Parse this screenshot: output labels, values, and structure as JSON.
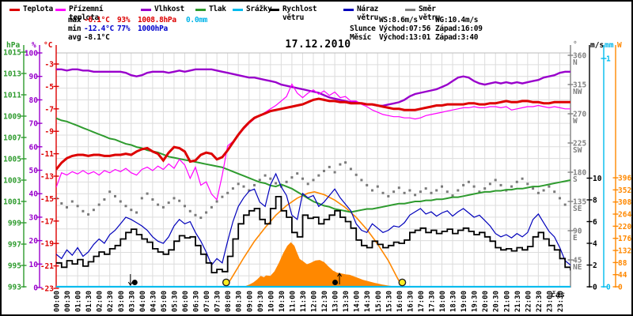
{
  "title": "17.12.2010",
  "xlabel": "čas",
  "legend": {
    "items": [
      {
        "label": "Teplota",
        "color": "#dd0000",
        "x": 10
      },
      {
        "label": "Přízemní teplota",
        "color": "#ff00ff",
        "x": 68
      },
      {
        "label": "Vlhkost",
        "color": "#9900cc",
        "x": 176
      },
      {
        "label": "Tlak",
        "color": "#2e9b2e",
        "x": 245
      },
      {
        "label": "Srážky",
        "color": "#00bbee",
        "x": 292
      },
      {
        "label": "Rychlost větru",
        "color": "#000000",
        "x": 338
      },
      {
        "label": "Náraz větru",
        "color": "#0000bb",
        "x": 432
      },
      {
        "label": "Směr větru",
        "color": "#808080",
        "x": 510
      }
    ]
  },
  "stats": {
    "max_label": "max",
    "max_temp": "-6.1°C",
    "max_hum": "93%",
    "max_pres": "1008.8hPa",
    "max_precip": "0.0mm",
    "min_label": "min",
    "min_temp": "-12.4°C",
    "min_hum": "77%",
    "min_pres": "1000hPa",
    "avg_label": "avg",
    "avg_temp": "-8.1°C",
    "ws": "WS:8.6m/s",
    "wg": "WG:10.4m/s",
    "sun_label": "Slunce",
    "sun_rise": "Východ:07:56",
    "sun_set": "Západ:16:09",
    "moon_label": "Měsíc",
    "moon_rise": "Východ:13:01",
    "moon_set": "Západ:3:40"
  },
  "axes": {
    "headers": {
      "hpa": "hPa",
      "pct": "%",
      "degc": "°C",
      "deg": "°",
      "ms": "m/s",
      "mm": "mm",
      "w": "W"
    },
    "pres_ticks": [
      1015,
      1013,
      1011,
      1009,
      1007,
      1005,
      1003,
      1001,
      999,
      997,
      995,
      993
    ],
    "hum_ticks": [
      100,
      90,
      80,
      70,
      60,
      50,
      40,
      30,
      20,
      10,
      0
    ],
    "temp_ticks": [
      -3,
      -5,
      -7,
      -9,
      -11,
      -13,
      -15,
      -17,
      -19,
      -21,
      -23
    ],
    "deg_ticks": [
      {
        "v": 360,
        "dir": "N"
      },
      {
        "v": 315,
        "dir": "NW"
      },
      {
        "v": 270,
        "dir": "W"
      },
      {
        "v": 225,
        "dir": "SW"
      },
      {
        "v": 180,
        "dir": "S"
      },
      {
        "v": 135,
        "dir": "SE"
      },
      {
        "v": 90,
        "dir": "E"
      },
      {
        "v": 45,
        "dir": "NE"
      }
    ],
    "ms_ticks": [
      10,
      8,
      6,
      4,
      2,
      0
    ],
    "mm_ticks": [
      1,
      0
    ],
    "w_ticks": [
      396,
      352,
      308,
      264,
      220,
      176,
      132,
      88,
      44,
      0
    ]
  },
  "time_labels": [
    "00:00",
    "00:30",
    "01:00",
    "01:30",
    "02:00",
    "02:30",
    "03:00",
    "03:30",
    "04:00",
    "04:30",
    "05:00",
    "05:30",
    "06:00",
    "06:30",
    "07:00",
    "07:30",
    "08:00",
    "08:30",
    "09:00",
    "09:30",
    "10:00",
    "10:30",
    "11:00",
    "11:30",
    "12:00",
    "12:30",
    "13:00",
    "13:30",
    "14:00",
    "14:30",
    "15:00",
    "15:30",
    "16:00",
    "16:30",
    "17:00",
    "17:30",
    "18:00",
    "18:30",
    "19:00",
    "19:30",
    "20:00",
    "20:30",
    "21:00",
    "21:30",
    "22:00",
    "22:30",
    "23:00",
    "23:30"
  ],
  "markers": {
    "sunrise_hour": 7.933,
    "sunset_hour": 16.15,
    "moonset_hour": 3.667,
    "moonrise_hour": 13.017,
    "sun_color": "#ffee22",
    "moon_color": "#000000"
  },
  "chart_data": {
    "type": "line",
    "title": "17.12.2010",
    "xlabel": "čas",
    "x_start_hour": 0,
    "x_step_hours": 0.25,
    "x_range_hours": [
      0,
      24
    ],
    "grid": true,
    "legend_position": "top",
    "series": [
      {
        "name": "Teplota",
        "unit": "°C",
        "color": "#dd0000",
        "axis": "temp",
        "ylim": [
          -23,
          -3
        ],
        "values": [
          -12.4,
          -11.8,
          -11.4,
          -11.2,
          -11.1,
          -11.1,
          -11.2,
          -11.1,
          -11.1,
          -11.2,
          -11.2,
          -11.1,
          -11.1,
          -11.0,
          -11.1,
          -10.8,
          -10.6,
          -10.5,
          -10.8,
          -11.0,
          -11.6,
          -10.9,
          -10.4,
          -10.5,
          -10.8,
          -11.7,
          -11.6,
          -11.1,
          -10.9,
          -11.0,
          -11.5,
          -11.3,
          -10.7,
          -10.0,
          -9.3,
          -8.7,
          -8.2,
          -7.8,
          -7.6,
          -7.4,
          -7.2,
          -7.1,
          -7.0,
          -6.9,
          -6.8,
          -6.7,
          -6.6,
          -6.4,
          -6.2,
          -6.1,
          -6.2,
          -6.3,
          -6.3,
          -6.4,
          -6.4,
          -6.5,
          -6.5,
          -6.5,
          -6.6,
          -6.6,
          -6.7,
          -6.8,
          -6.9,
          -7.0,
          -7.0,
          -7.1,
          -7.1,
          -7.1,
          -7.0,
          -6.9,
          -6.8,
          -6.7,
          -6.7,
          -6.6,
          -6.6,
          -6.6,
          -6.6,
          -6.5,
          -6.5,
          -6.6,
          -6.6,
          -6.5,
          -6.5,
          -6.4,
          -6.3,
          -6.4,
          -6.4,
          -6.3,
          -6.3,
          -6.4,
          -6.4,
          -6.5,
          -6.5,
          -6.4,
          -6.4,
          -6.4,
          -6.4
        ]
      },
      {
        "name": "Přízemní teplota",
        "unit": "°C",
        "color": "#ff00ff",
        "axis": "temp",
        "ylim": [
          -23,
          -3
        ],
        "values": [
          -14.0,
          -12.7,
          -12.9,
          -12.6,
          -12.8,
          -12.5,
          -12.8,
          -12.6,
          -12.9,
          -12.5,
          -12.7,
          -12.4,
          -12.6,
          -12.3,
          -12.7,
          -12.9,
          -12.4,
          -12.2,
          -12.5,
          -12.1,
          -12.4,
          -11.9,
          -12.3,
          -11.5,
          -12.0,
          -13.2,
          -12.2,
          -13.8,
          -13.5,
          -14.6,
          -15.1,
          -12.9,
          -10.3,
          -9.9,
          -9.4,
          -8.8,
          -8.3,
          -7.9,
          -7.6,
          -7.3,
          -7.0,
          -6.7,
          -6.3,
          -5.9,
          -4.8,
          -5.6,
          -6.0,
          -5.6,
          -5.3,
          -5.7,
          -5.4,
          -5.8,
          -5.5,
          -6.0,
          -5.9,
          -6.3,
          -6.3,
          -6.6,
          -6.8,
          -7.1,
          -7.3,
          -7.5,
          -7.6,
          -7.7,
          -7.7,
          -7.8,
          -7.8,
          -7.9,
          -7.8,
          -7.6,
          -7.5,
          -7.4,
          -7.3,
          -7.2,
          -7.1,
          -7.0,
          -6.9,
          -6.9,
          -6.8,
          -6.9,
          -6.9,
          -6.8,
          -6.8,
          -6.9,
          -6.8,
          -7.1,
          -7.0,
          -6.9,
          -6.8,
          -6.8,
          -6.7,
          -6.8,
          -6.9,
          -6.8,
          -6.9,
          -7.0,
          -7.0
        ]
      },
      {
        "name": "Vlhkost",
        "unit": "%",
        "color": "#9900cc",
        "axis": "hum",
        "ylim": [
          0,
          100
        ],
        "values": [
          93,
          93,
          92.5,
          93,
          93,
          92.5,
          92.5,
          92,
          92,
          92,
          92,
          92,
          92,
          91.5,
          90.5,
          90,
          90.5,
          91.5,
          92,
          92,
          92,
          91.5,
          92,
          92.5,
          92,
          92.5,
          93,
          93,
          93,
          93,
          92.5,
          92,
          91.5,
          91,
          90.5,
          90,
          89.5,
          89.5,
          89,
          88.5,
          88,
          87.5,
          86.5,
          86,
          85.5,
          85,
          84.5,
          84,
          83.5,
          83,
          82,
          81,
          80.5,
          80,
          79.5,
          79,
          79,
          78.5,
          78,
          78,
          77.5,
          77.5,
          78,
          78.5,
          79,
          80,
          81.5,
          82.5,
          83,
          83.5,
          84,
          84.5,
          85.5,
          86.5,
          88,
          89.5,
          90,
          89.5,
          88,
          87,
          86.5,
          87,
          87.5,
          87,
          87.5,
          87,
          87.5,
          87,
          87.5,
          88,
          88.5,
          89.5,
          90,
          90.5,
          91.5,
          92,
          92
        ]
      },
      {
        "name": "Tlak",
        "unit": "hPa",
        "color": "#2e9b2e",
        "axis": "pres",
        "ylim": [
          993,
          1015
        ],
        "values": [
          1008.8,
          1008.6,
          1008.5,
          1008.3,
          1008.1,
          1007.9,
          1007.7,
          1007.5,
          1007.3,
          1007.1,
          1006.9,
          1006.8,
          1006.6,
          1006.4,
          1006.3,
          1006.1,
          1006.0,
          1005.8,
          1005.7,
          1005.6,
          1005.4,
          1005.2,
          1005.1,
          1005.0,
          1004.9,
          1004.8,
          1004.7,
          1004.6,
          1004.5,
          1004.4,
          1004.3,
          1004.2,
          1004.0,
          1003.8,
          1003.6,
          1003.4,
          1003.2,
          1003.0,
          1002.8,
          1002.7,
          1002.5,
          1002.4,
          1002.6,
          1002.4,
          1002.2,
          1001.9,
          1001.6,
          1001.3,
          1001.0,
          1000.8,
          1000.6,
          1000.5,
          1000.3,
          1000.2,
          1000.1,
          1000.0,
          1000.1,
          1000.2,
          1000.3,
          1000.3,
          1000.4,
          1000.5,
          1000.6,
          1000.7,
          1000.8,
          1000.8,
          1000.9,
          1001.0,
          1001.0,
          1001.1,
          1001.1,
          1001.2,
          1001.2,
          1001.3,
          1001.4,
          1001.4,
          1001.5,
          1001.6,
          1001.7,
          1001.8,
          1001.9,
          1001.9,
          1002.0,
          1002.0,
          1002.1,
          1002.1,
          1002.2,
          1002.2,
          1002.3,
          1002.4,
          1002.4,
          1002.5,
          1002.6,
          1002.7,
          1002.8,
          1002.9,
          1003.0
        ]
      },
      {
        "name": "Srážky",
        "unit": "mm",
        "color": "#00bbee",
        "axis": "mm",
        "ylim": [
          0,
          1
        ],
        "constant": 0
      },
      {
        "name": "Rychlost větru",
        "unit": "m/s",
        "color": "#000000",
        "axis": "wind",
        "ylim": [
          0,
          21
        ],
        "values": [
          2.2,
          1.8,
          2.4,
          2.1,
          2.5,
          1.9,
          2.3,
          2.8,
          3.2,
          3.0,
          3.5,
          3.8,
          4.4,
          5.0,
          5.3,
          4.8,
          4.4,
          4.1,
          3.5,
          3.2,
          3.0,
          3.4,
          4.2,
          4.7,
          4.5,
          4.6,
          3.8,
          3.0,
          2.2,
          1.3,
          1.6,
          1.4,
          2.8,
          4.4,
          5.8,
          6.6,
          7.0,
          7.2,
          6.2,
          5.8,
          7.2,
          8.3,
          7.0,
          6.4,
          5.0,
          4.6,
          6.6,
          6.3,
          6.4,
          5.8,
          6.2,
          6.6,
          7.0,
          6.4,
          6.0,
          5.4,
          4.3,
          3.8,
          3.6,
          4.2,
          3.9,
          3.6,
          3.8,
          4.1,
          4.0,
          4.3,
          5.0,
          5.2,
          5.4,
          5.0,
          5.2,
          4.9,
          5.1,
          5.3,
          4.9,
          5.2,
          5.4,
          5.1,
          4.8,
          5.0,
          4.6,
          4.2,
          3.6,
          3.4,
          3.5,
          3.3,
          3.6,
          3.4,
          3.7,
          4.6,
          5.0,
          4.4,
          3.8,
          3.4,
          2.6,
          1.8,
          1.5
        ]
      },
      {
        "name": "Náraz větru",
        "unit": "m/s",
        "color": "#0000bb",
        "axis": "wind",
        "ylim": [
          0,
          21
        ],
        "values": [
          3.0,
          2.6,
          3.4,
          2.9,
          3.6,
          2.8,
          3.2,
          3.9,
          4.4,
          4.0,
          4.8,
          5.2,
          5.8,
          6.4,
          6.2,
          5.9,
          5.6,
          5.2,
          4.6,
          4.2,
          4.0,
          4.6,
          5.6,
          6.2,
          5.8,
          6.0,
          5.0,
          4.2,
          3.2,
          2.0,
          2.6,
          2.2,
          4.2,
          6.0,
          7.4,
          8.2,
          8.8,
          9.0,
          7.8,
          7.4,
          9.4,
          10.4,
          9.2,
          8.4,
          6.6,
          6.2,
          8.6,
          8.2,
          8.4,
          7.4,
          7.8,
          8.4,
          9.0,
          8.2,
          7.6,
          7.0,
          5.8,
          5.2,
          5.0,
          5.8,
          5.4,
          5.0,
          5.2,
          5.6,
          5.5,
          5.9,
          6.6,
          6.9,
          7.2,
          6.7,
          6.9,
          6.5,
          6.8,
          7.0,
          6.5,
          6.9,
          7.2,
          6.8,
          6.4,
          6.6,
          6.1,
          5.6,
          4.9,
          4.6,
          4.8,
          4.5,
          4.9,
          4.6,
          5.0,
          6.2,
          6.7,
          5.9,
          5.1,
          4.6,
          3.6,
          2.4,
          2.0
        ]
      },
      {
        "name": "Směr větru",
        "unit": "°",
        "color": "#808080",
        "axis": "deg",
        "ylim": [
          0,
          360
        ],
        "style": "dots",
        "values": [
          140,
          132,
          126,
          135,
          128,
          120,
          115,
          122,
          130,
          138,
          150,
          143,
          135,
          128,
          122,
          118,
          140,
          147,
          138,
          130,
          126,
          133,
          140,
          136,
          128,
          120,
          114,
          110,
          118,
          126,
          135,
          142,
          148,
          155,
          162,
          158,
          152,
          160,
          168,
          175,
          170,
          163,
          158,
          165,
          172,
          178,
          170,
          162,
          168,
          175,
          182,
          188,
          180,
          192,
          195,
          185,
          176,
          168,
          160,
          152,
          158,
          148,
          143,
          150,
          156,
          148,
          152,
          145,
          150,
          155,
          148,
          152,
          158,
          150,
          144,
          152,
          160,
          165,
          158,
          150,
          155,
          162,
          168,
          160,
          152,
          158,
          165,
          170,
          162,
          155,
          148,
          152,
          158,
          150,
          140,
          130
        ]
      }
    ],
    "radiation": {
      "name": "Sluneční záření",
      "unit": "W",
      "color": "#ff8800",
      "ylim": [
        0,
        440
      ],
      "arc_points": [
        [
          7.93,
          0
        ],
        [
          8.25,
          40
        ],
        [
          8.75,
          105
        ],
        [
          9.25,
          165
        ],
        [
          9.75,
          215
        ],
        [
          10.25,
          260
        ],
        [
          10.75,
          295
        ],
        [
          11.25,
          322
        ],
        [
          11.75,
          340
        ],
        [
          12.05,
          345
        ],
        [
          12.5,
          335
        ],
        [
          13.0,
          315
        ],
        [
          13.5,
          288
        ],
        [
          14.0,
          252
        ],
        [
          14.5,
          208
        ],
        [
          15.0,
          155
        ],
        [
          15.5,
          95
        ],
        [
          15.9,
          35
        ],
        [
          16.15,
          0
        ]
      ],
      "actual_points": [
        [
          8.8,
          0
        ],
        [
          9.0,
          6
        ],
        [
          9.2,
          14
        ],
        [
          9.4,
          26
        ],
        [
          9.55,
          38
        ],
        [
          9.7,
          33
        ],
        [
          9.8,
          40
        ],
        [
          10.0,
          38
        ],
        [
          10.2,
          55
        ],
        [
          10.4,
          85
        ],
        [
          10.6,
          120
        ],
        [
          10.8,
          148
        ],
        [
          10.95,
          160
        ],
        [
          11.1,
          148
        ],
        [
          11.2,
          128
        ],
        [
          11.35,
          100
        ],
        [
          11.5,
          92
        ],
        [
          11.7,
          80
        ],
        [
          11.9,
          86
        ],
        [
          12.1,
          94
        ],
        [
          12.3,
          96
        ],
        [
          12.5,
          88
        ],
        [
          12.7,
          72
        ],
        [
          12.9,
          58
        ],
        [
          13.1,
          50
        ],
        [
          13.3,
          47
        ],
        [
          13.5,
          44
        ],
        [
          13.7,
          42
        ],
        [
          13.9,
          36
        ],
        [
          14.1,
          30
        ],
        [
          14.3,
          24
        ],
        [
          14.6,
          18
        ],
        [
          14.9,
          12
        ],
        [
          15.2,
          7
        ],
        [
          15.5,
          3
        ],
        [
          15.8,
          0
        ]
      ]
    }
  }
}
